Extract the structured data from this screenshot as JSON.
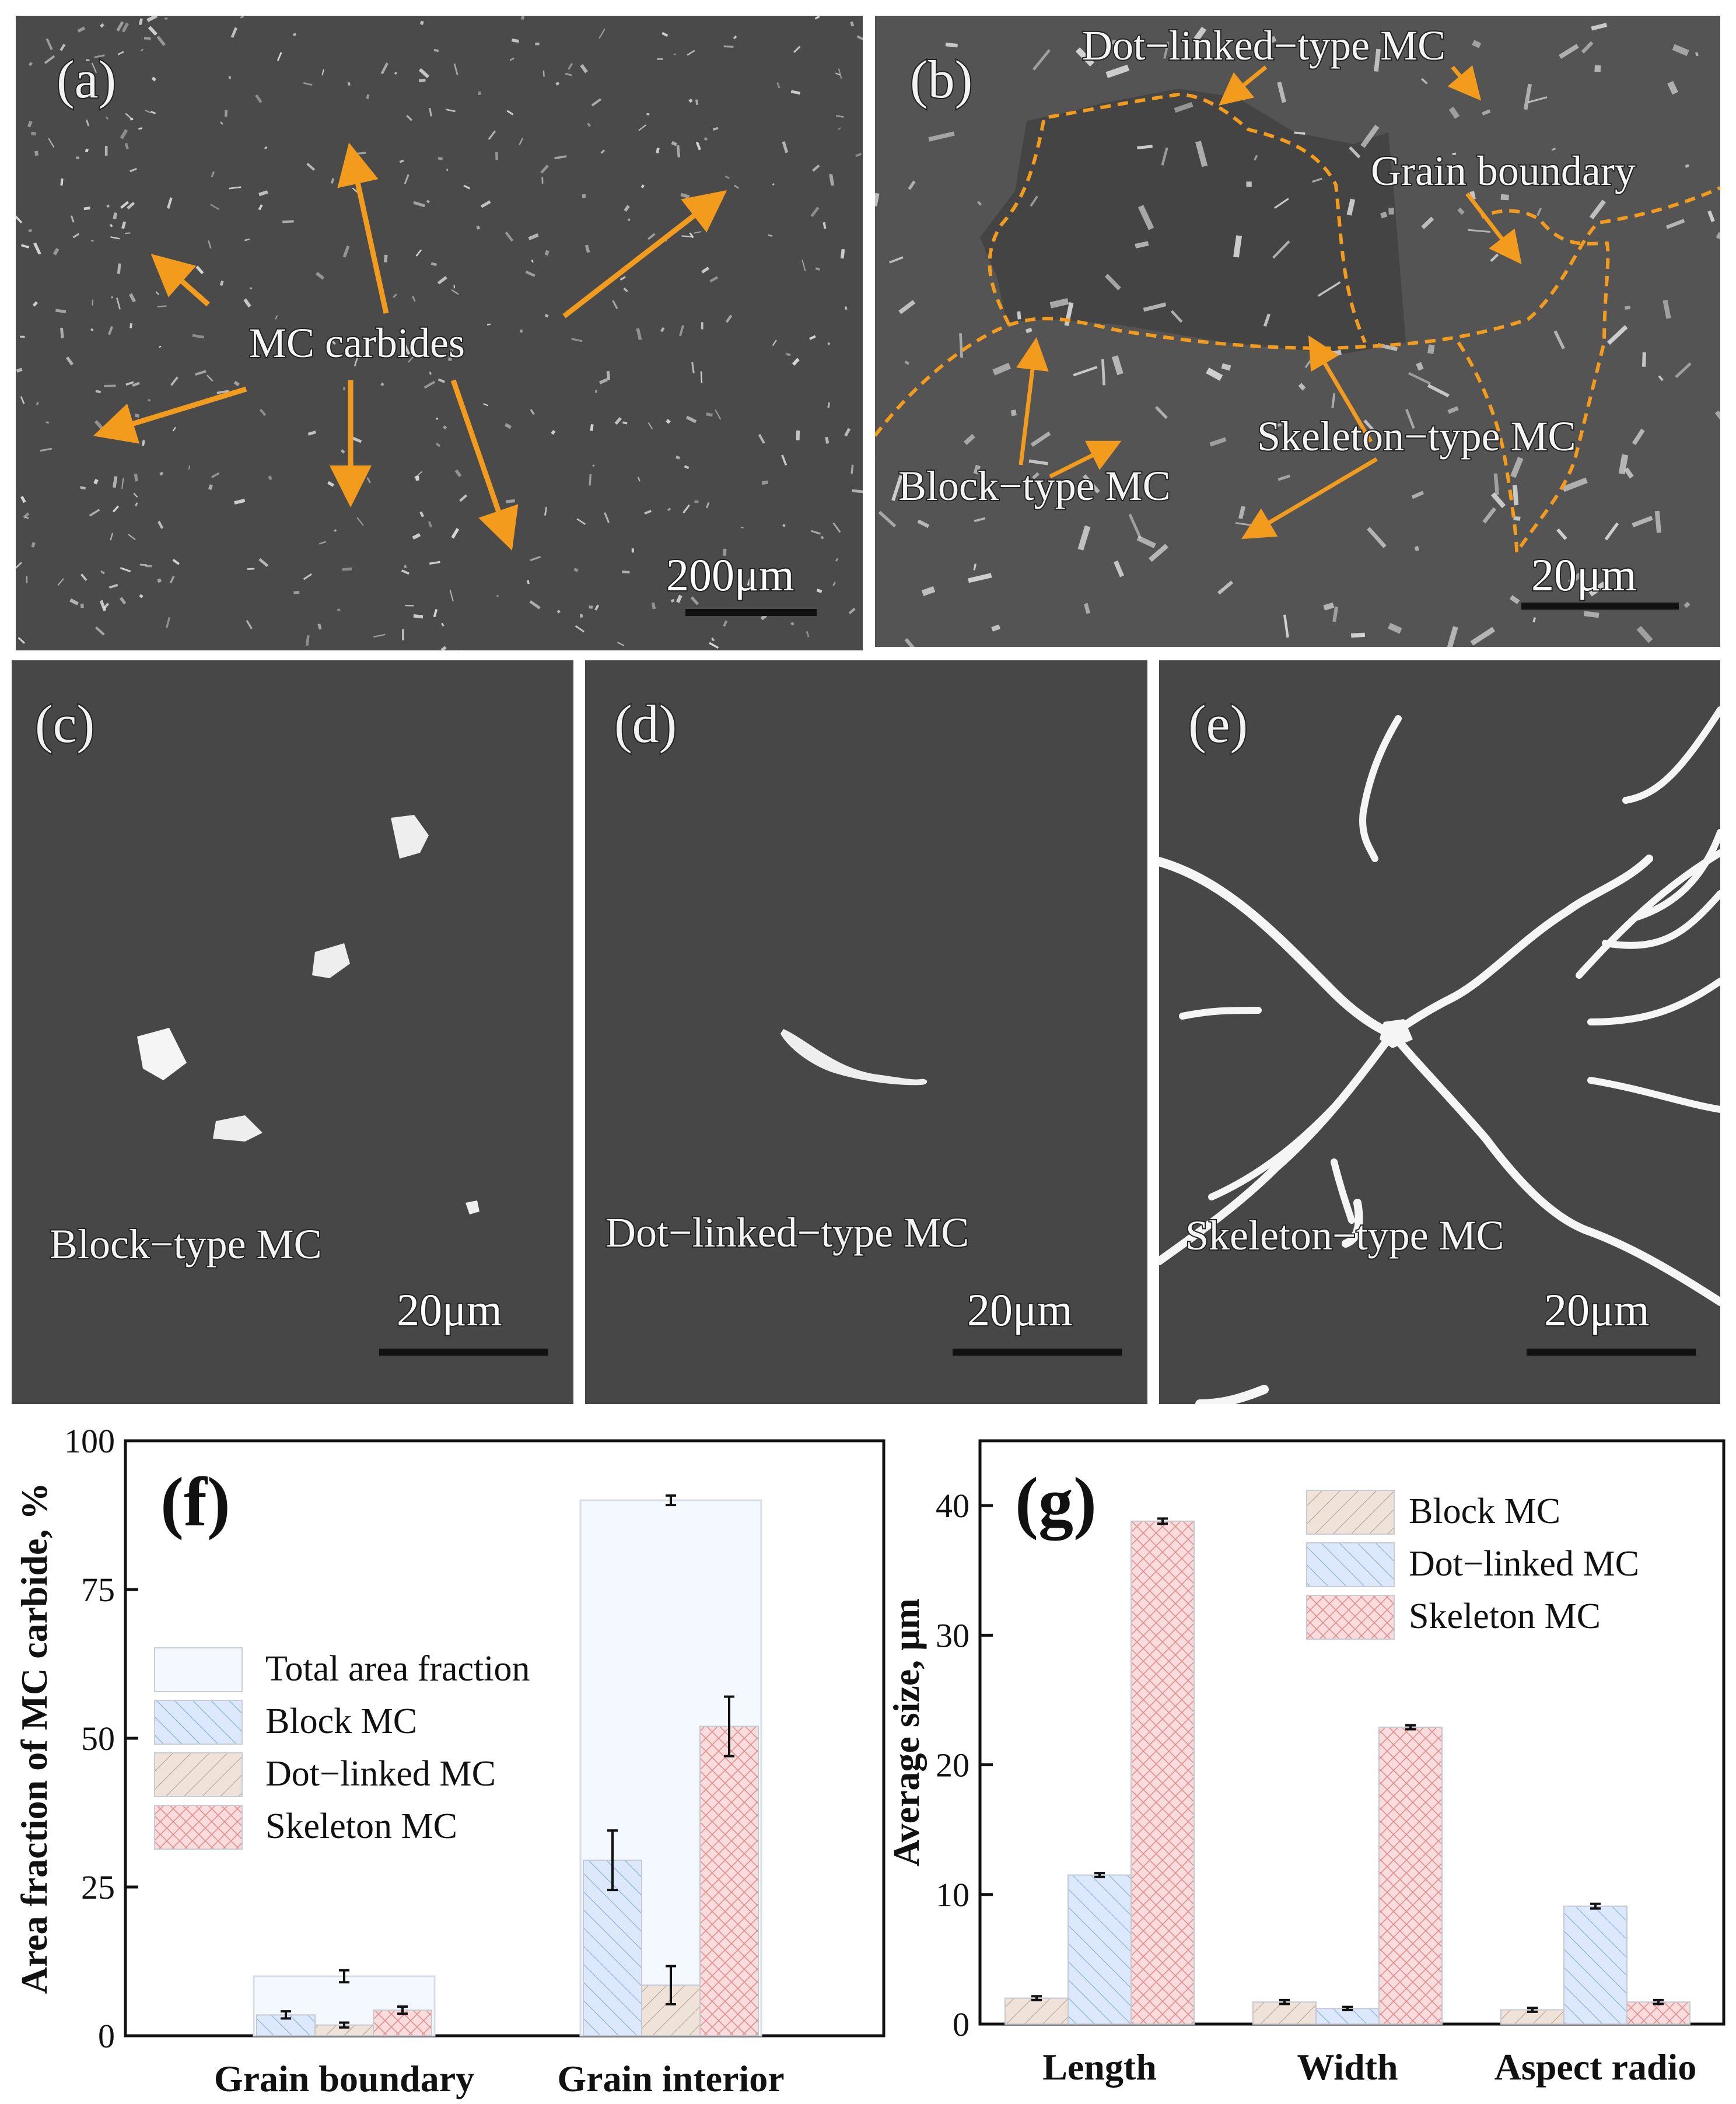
{
  "images": {
    "a": {
      "tag": "(a)",
      "label": "MC carbides",
      "scale": "200μm"
    },
    "b": {
      "tag": "(b)",
      "labels": [
        "Dot−linked−type MC",
        "Grain boundary",
        "Skeleton−type MC",
        "Block−type MC"
      ],
      "scale": "20μm"
    },
    "c": {
      "tag": "(c)",
      "label": "Block−type MC",
      "scale": "20μm"
    },
    "d": {
      "tag": "(d)",
      "label": "Dot−linked−type MC",
      "scale": "20μm"
    },
    "e": {
      "tag": "(e)",
      "label": "Skeleton−type MC",
      "scale": "20μm"
    }
  },
  "colors": {
    "total": "#f3f9ff",
    "block_fill": "#dce8fb",
    "block_hatch": "#7fa3dd",
    "dot_fill": "#efe3d9",
    "dot_hatch": "#b49b86",
    "skel_fill": "#fbdcdc",
    "skel_hatch": "#df8f8f",
    "arrow": "#f29b1d",
    "sem_bg": "#4a4a4a"
  },
  "chart_data": [
    {
      "panel": "(f)",
      "type": "bar",
      "ylabel": "Area fraction of MC carbide, %",
      "ylim": [
        0,
        100
      ],
      "yticks": [
        0,
        25,
        50,
        75,
        100
      ],
      "categories": [
        "Grain boundary",
        "Grain interior"
      ],
      "legend": [
        "Total area fraction",
        "Block MC",
        "Dot−linked MC",
        "Skeleton MC"
      ],
      "legend_position": "center-left",
      "total": {
        "values": [
          10,
          90
        ],
        "errors": [
          1.0,
          0.8
        ]
      },
      "series": [
        {
          "name": "Block MC",
          "values": [
            3.5,
            29.5
          ],
          "errors": [
            0.6,
            5.0
          ]
        },
        {
          "name": "Dot−linked MC",
          "values": [
            1.8,
            8.5
          ],
          "errors": [
            0.4,
            3.2
          ]
        },
        {
          "name": "Skeleton MC",
          "values": [
            4.3,
            52
          ],
          "errors": [
            0.6,
            5.0
          ]
        }
      ]
    },
    {
      "panel": "(g)",
      "type": "bar",
      "ylabel": "Average size, μm",
      "ylim": [
        0,
        45
      ],
      "yticks": [
        0,
        10,
        20,
        30,
        40
      ],
      "categories": [
        "Length",
        "Width",
        "Aspect radio"
      ],
      "legend": [
        "Block MC",
        "Dot−linked MC",
        "Skeleton MC"
      ],
      "legend_position": "top-right",
      "series": [
        {
          "name": "Block MC",
          "values": [
            2.0,
            1.7,
            1.1
          ],
          "errors": [
            0.15,
            0.15,
            0.15
          ]
        },
        {
          "name": "Dot−linked MC",
          "values": [
            11.5,
            1.2,
            9.1
          ],
          "errors": [
            0.15,
            0.12,
            0.18
          ]
        },
        {
          "name": "Skeleton MC",
          "values": [
            38.8,
            22.9,
            1.7
          ],
          "errors": [
            0.2,
            0.15,
            0.15
          ]
        }
      ]
    }
  ]
}
